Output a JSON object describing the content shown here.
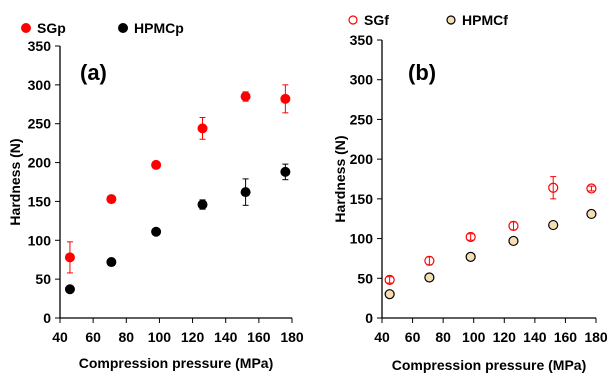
{
  "chart_data": [
    {
      "type": "scatter",
      "panel_label": "(a)",
      "xlabel": "Compression pressure (MPa)",
      "ylabel": "Hardness (N)",
      "xlim": [
        40,
        180
      ],
      "ylim": [
        0,
        350
      ],
      "x_ticks": [
        40,
        60,
        80,
        100,
        120,
        140,
        160,
        180
      ],
      "y_ticks": [
        0,
        50,
        100,
        150,
        200,
        250,
        300,
        350
      ],
      "grid": false,
      "legend_position": "top",
      "series": [
        {
          "name": "SGp",
          "marker": "filled-circle",
          "color": "#ff0000",
          "points": [
            {
              "x": 46,
              "y": 78,
              "err": 20
            },
            {
              "x": 71,
              "y": 153,
              "err": 3
            },
            {
              "x": 98,
              "y": 197,
              "err": 3
            },
            {
              "x": 126,
              "y": 244,
              "err": 14
            },
            {
              "x": 152,
              "y": 285,
              "err": 6
            },
            {
              "x": 176,
              "y": 282,
              "err": 18
            }
          ]
        },
        {
          "name": "HPMCp",
          "marker": "filled-circle",
          "color": "#000000",
          "points": [
            {
              "x": 46,
              "y": 37,
              "err": 3
            },
            {
              "x": 71,
              "y": 72,
              "err": 3
            },
            {
              "x": 98,
              "y": 111,
              "err": 2
            },
            {
              "x": 126,
              "y": 146,
              "err": 6
            },
            {
              "x": 152,
              "y": 162,
              "err": 17
            },
            {
              "x": 176,
              "y": 188,
              "err": 10
            }
          ]
        }
      ]
    },
    {
      "type": "scatter",
      "panel_label": "(b)",
      "xlabel": "Compression pressure (MPa)",
      "ylabel": "Hardness (N)",
      "xlim": [
        40,
        180
      ],
      "ylim": [
        0,
        350
      ],
      "x_ticks": [
        40,
        60,
        80,
        100,
        120,
        140,
        160,
        180
      ],
      "y_ticks": [
        0,
        50,
        100,
        150,
        200,
        250,
        300,
        350
      ],
      "grid": false,
      "legend_position": "top",
      "series": [
        {
          "name": "SGf",
          "marker": "open-circle",
          "color": "#ff0000",
          "points": [
            {
              "x": 45,
              "y": 48,
              "err": 4
            },
            {
              "x": 71,
              "y": 72,
              "err": 5
            },
            {
              "x": 98,
              "y": 102,
              "err": 4
            },
            {
              "x": 126,
              "y": 116,
              "err": 5
            },
            {
              "x": 152,
              "y": 164,
              "err": 14
            },
            {
              "x": 177,
              "y": 163,
              "err": 3
            }
          ]
        },
        {
          "name": "HPMCf",
          "marker": "open-circle",
          "color": "#000000",
          "fill": "#f5deb3",
          "points": [
            {
              "x": 45,
              "y": 30,
              "err": 2
            },
            {
              "x": 71,
              "y": 51,
              "err": 3
            },
            {
              "x": 98,
              "y": 77,
              "err": 3
            },
            {
              "x": 126,
              "y": 97,
              "err": 3
            },
            {
              "x": 152,
              "y": 117,
              "err": 3
            },
            {
              "x": 177,
              "y": 131,
              "err": 3
            }
          ]
        }
      ]
    }
  ]
}
